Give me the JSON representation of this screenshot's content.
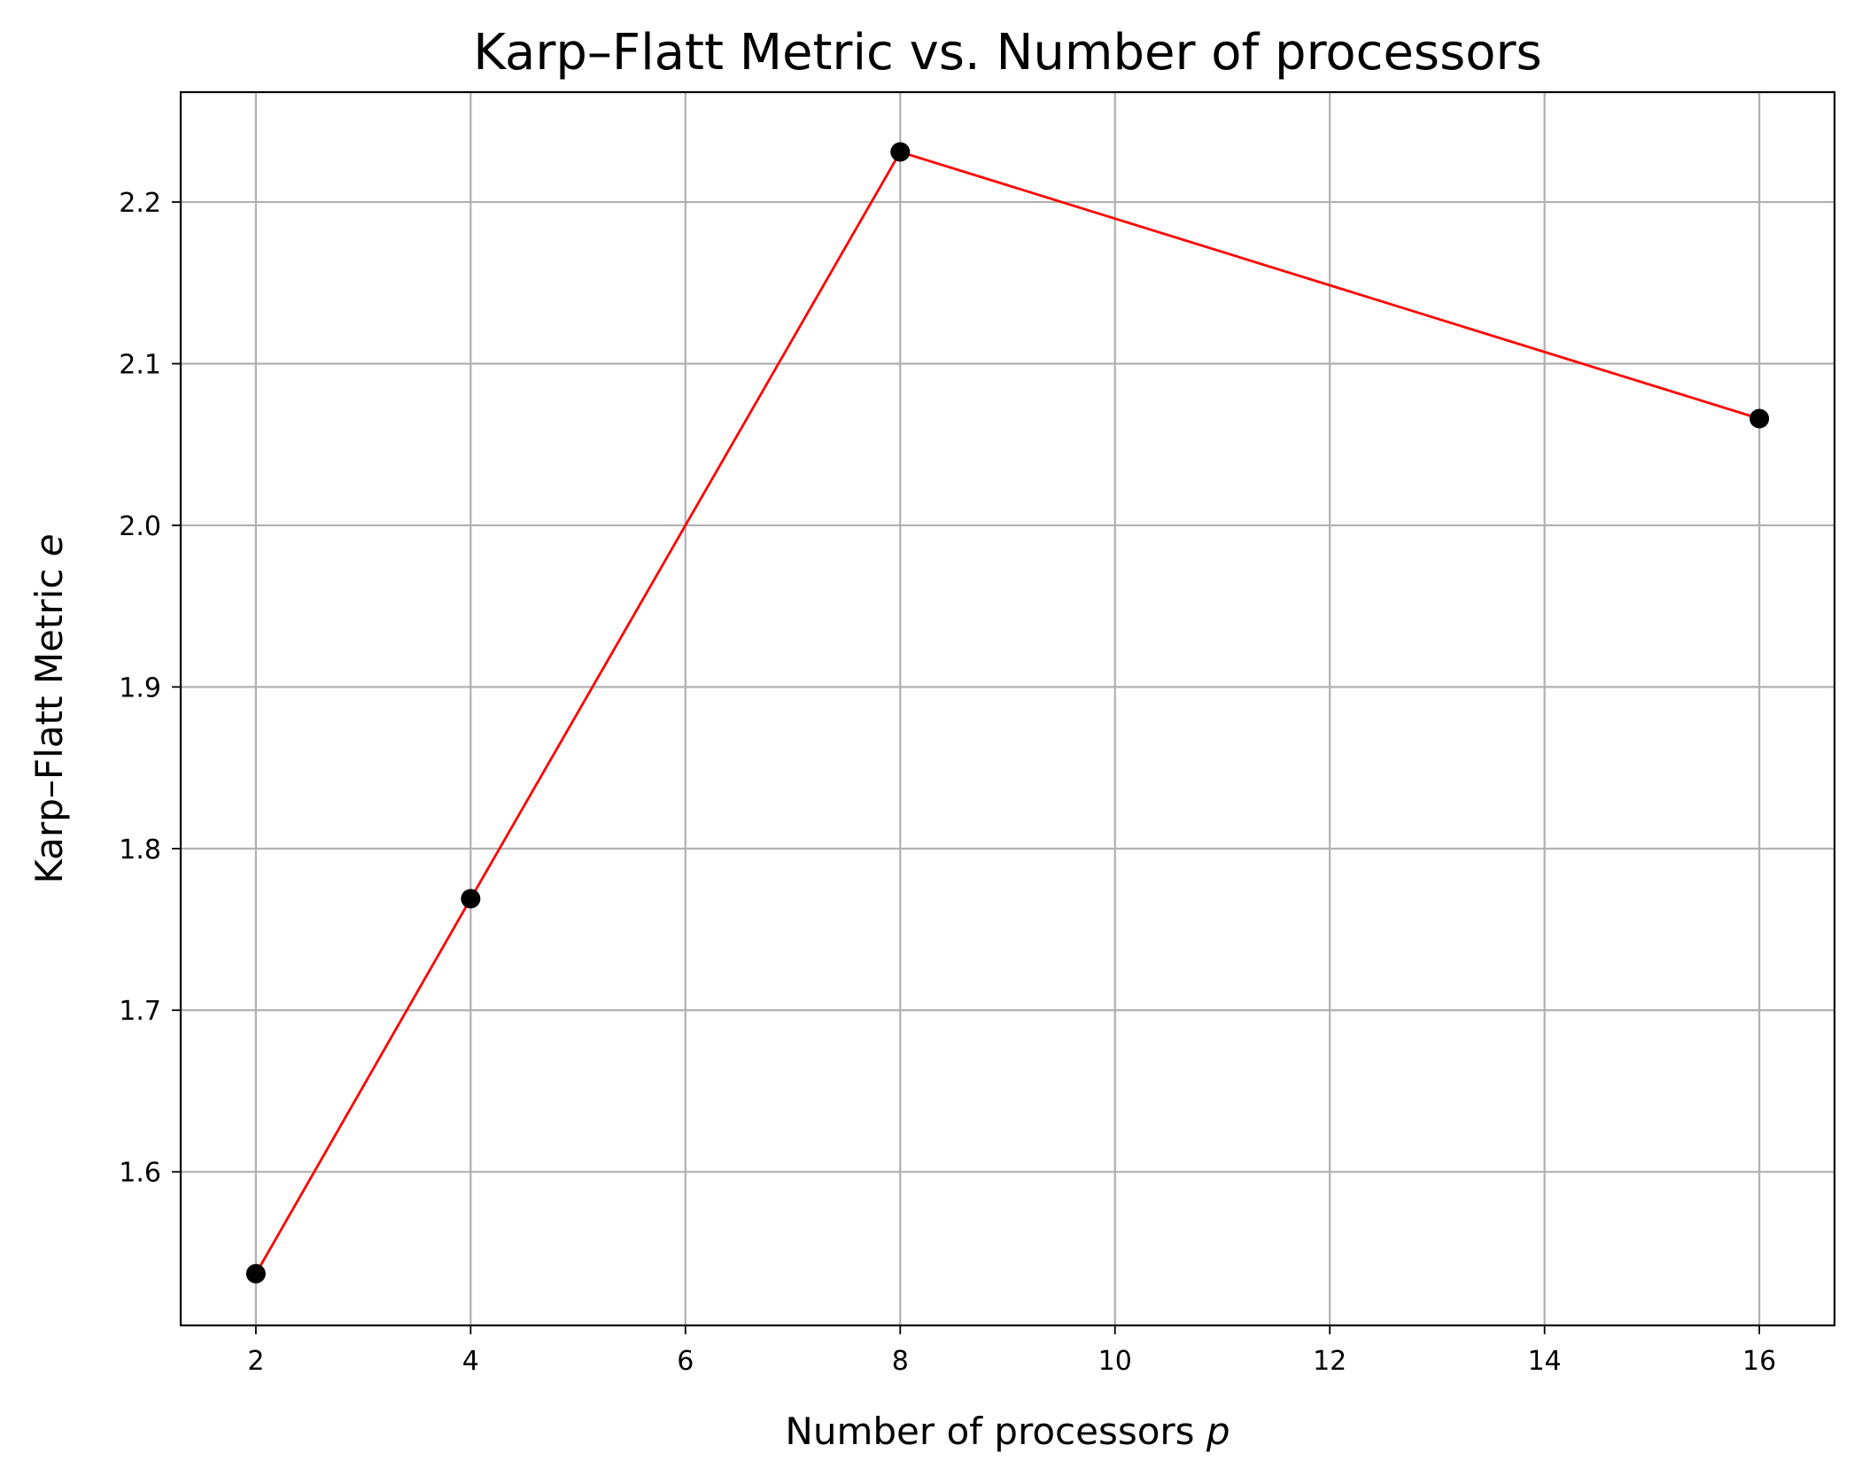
{
  "chart_data": {
    "type": "line",
    "title": "Karp–Flatt Metric vs. Number of processors",
    "xlabel": "Number of processors",
    "xlabel_var": "p",
    "ylabel": "Karp–Flatt Metric",
    "ylabel_var": "e",
    "x": [
      2,
      4,
      8,
      16
    ],
    "series": [
      {
        "values": [
          1.537,
          1.769,
          2.231,
          2.066
        ],
        "line_color": "#ff0000",
        "marker_color": "#000000",
        "marker": "circle"
      }
    ],
    "xlim": [
      1.3,
      16.7
    ],
    "ylim": [
      1.505,
      2.268
    ],
    "xticks": [
      2,
      4,
      6,
      8,
      10,
      12,
      14,
      16
    ],
    "yticks": [
      1.6,
      1.7,
      1.8,
      1.9,
      2.0,
      2.1,
      2.2
    ],
    "xtick_labels": [
      "2",
      "4",
      "6",
      "8",
      "10",
      "12",
      "14",
      "16"
    ],
    "ytick_labels": [
      "1.6",
      "1.7",
      "1.8",
      "1.9",
      "2.0",
      "2.1",
      "2.2"
    ],
    "grid": true,
    "legend": "none"
  }
}
